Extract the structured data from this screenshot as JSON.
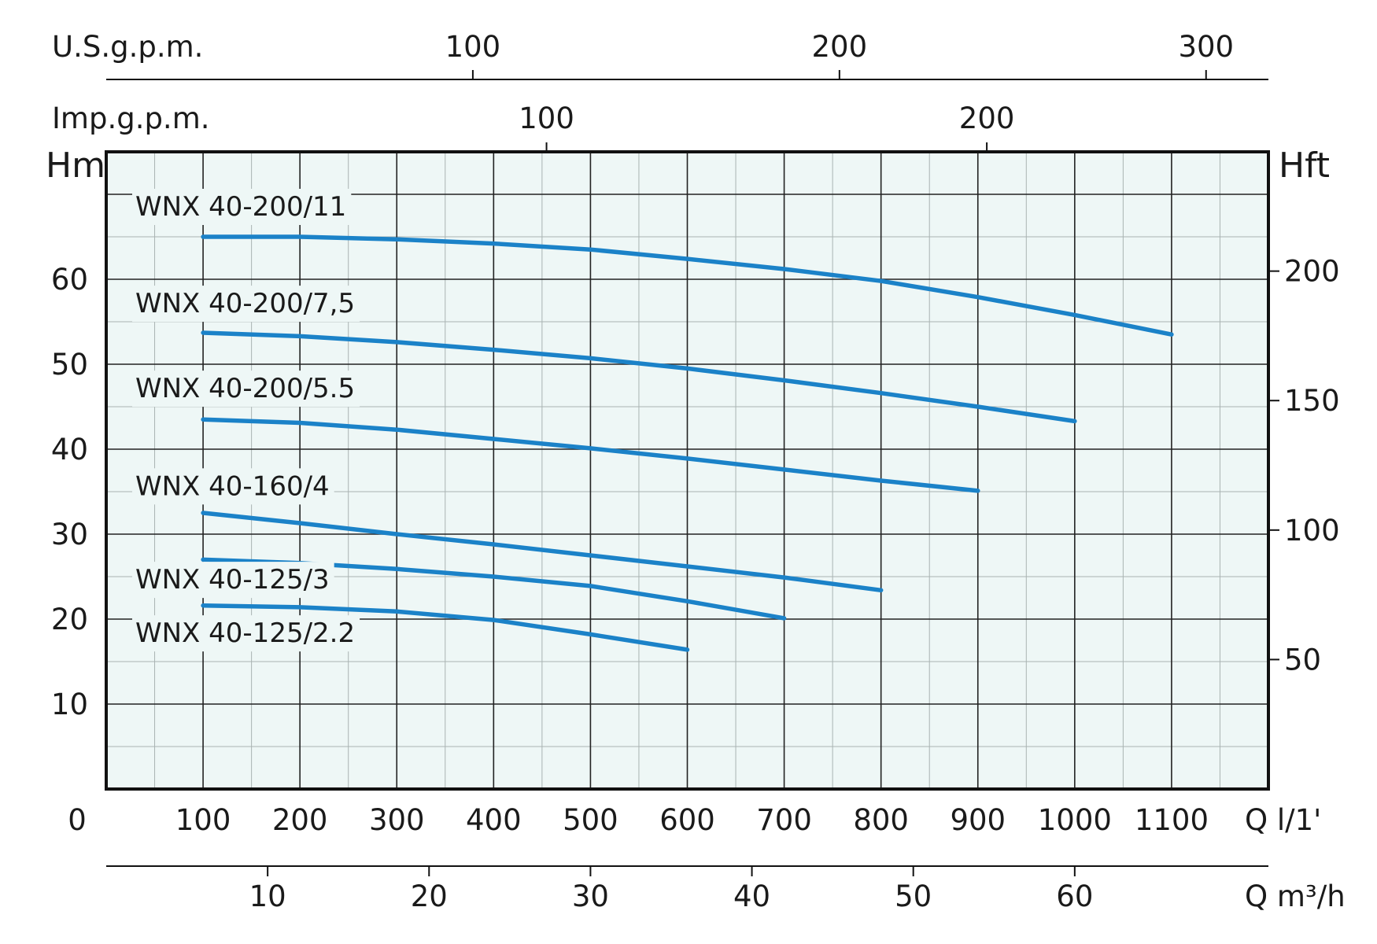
{
  "chart_data": {
    "type": "line",
    "x_unit": "Q l/1'",
    "y_unit": "Hm",
    "xlim": [
      0,
      1200
    ],
    "ylim": [
      0,
      75
    ],
    "x_ticks": [
      0,
      100,
      200,
      300,
      400,
      500,
      600,
      700,
      800,
      900,
      1000,
      1100
    ],
    "y_ticks": [
      10,
      20,
      30,
      40,
      50,
      60
    ],
    "grid": true,
    "secondary_axes": {
      "m3h": {
        "label": "Q m³/h",
        "ticks": [
          10,
          20,
          30,
          40,
          50,
          60
        ]
      },
      "usgpm": {
        "label": "U.S.g.p.m.",
        "ticks": [
          100,
          200,
          300
        ]
      },
      "impgpm": {
        "label": "Imp.g.p.m.",
        "ticks": [
          100,
          200
        ]
      },
      "hft": {
        "label": "Hft",
        "ticks": [
          50,
          100,
          150,
          200
        ]
      }
    },
    "series": [
      {
        "name": "WNX 40-200/11",
        "label_y": 67.5,
        "x": [
          100,
          200,
          300,
          400,
          500,
          600,
          700,
          800,
          900,
          1000,
          1100
        ],
        "y": [
          65,
          65,
          64.7,
          64.2,
          63.5,
          62.4,
          61.2,
          59.8,
          57.9,
          55.8,
          53.5
        ]
      },
      {
        "name": "WNX 40-200/7,5",
        "label_y": 56.1,
        "x": [
          100,
          200,
          300,
          400,
          500,
          600,
          700,
          800,
          900,
          1000
        ],
        "y": [
          53.7,
          53.3,
          52.6,
          51.7,
          50.7,
          49.5,
          48.1,
          46.6,
          45,
          43.3
        ]
      },
      {
        "name": "WNX 40-200/5.5",
        "label_y": 46.1,
        "x": [
          100,
          200,
          300,
          400,
          500,
          600,
          700,
          800,
          900
        ],
        "y": [
          43.5,
          43.1,
          42.3,
          41.2,
          40.1,
          38.9,
          37.6,
          36.3,
          35.1
        ]
      },
      {
        "name": "WNX 40-160/4",
        "label_y": 34.6,
        "x": [
          100,
          200,
          300,
          400,
          500,
          600,
          700,
          800
        ],
        "y": [
          32.5,
          31.3,
          30,
          28.8,
          27.5,
          26.2,
          24.9,
          23.4
        ]
      },
      {
        "name": "WNX 40-125/3",
        "label_y": 23.6,
        "x": [
          100,
          200,
          300,
          400,
          500,
          600,
          700
        ],
        "y": [
          27,
          26.6,
          25.9,
          25,
          23.9,
          22.1,
          20.1
        ]
      },
      {
        "name": "WNX 40-125/2.2",
        "label_y": 17.3,
        "x": [
          100,
          200,
          300,
          400,
          500,
          600
        ],
        "y": [
          21.6,
          21.4,
          20.9,
          19.9,
          18.2,
          16.4
        ]
      }
    ]
  }
}
